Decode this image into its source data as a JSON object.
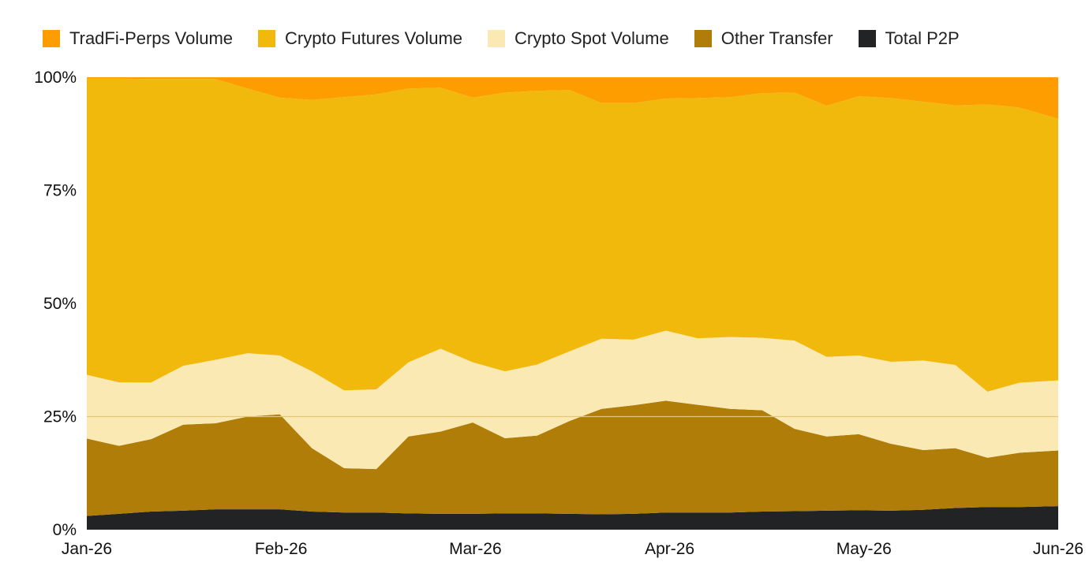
{
  "chart_data": {
    "type": "area",
    "stacked": true,
    "normalized": true,
    "title": "",
    "xlabel": "",
    "ylabel": "",
    "ylim": [
      0,
      100
    ],
    "y_ticks": [
      "0%",
      "25%",
      "50%",
      "75%",
      "100%"
    ],
    "x_ticks": [
      "Jan-26",
      "Feb-26",
      "Mar-26",
      "Apr-26",
      "May-26",
      "Jun-26"
    ],
    "x_dates": [
      "2026-01-01",
      "2026-01-06",
      "2026-01-11",
      "2026-01-16",
      "2026-01-21",
      "2026-01-26",
      "2026-01-31",
      "2026-02-05",
      "2026-02-10",
      "2026-02-15",
      "2026-02-20",
      "2026-02-25",
      "2026-03-02",
      "2026-03-07",
      "2026-03-12",
      "2026-03-17",
      "2026-03-22",
      "2026-03-27",
      "2026-04-01",
      "2026-04-06",
      "2026-04-11",
      "2026-04-16",
      "2026-04-21",
      "2026-04-26",
      "2026-05-01",
      "2026-05-06",
      "2026-05-11",
      "2026-05-16",
      "2026-05-21",
      "2026-05-26",
      "2026-06-01"
    ],
    "legend_position": "top",
    "grid": false,
    "reference_line": 25,
    "series": [
      {
        "name": "Total P2P",
        "color": "#222325",
        "values": [
          3,
          3.5,
          4,
          4.2,
          4.5,
          4.5,
          4.5,
          4,
          3.8,
          3.8,
          3.6,
          3.5,
          3.5,
          3.6,
          3.6,
          3.5,
          3.4,
          3.5,
          3.8,
          3.8,
          3.8,
          4.0,
          4.1,
          4.2,
          4.3,
          4.2,
          4.4,
          4.8,
          5.0,
          5.0,
          5.2
        ]
      },
      {
        "name": "Other Transfer",
        "color": "#b07e08",
        "values": [
          17,
          15,
          16,
          19,
          19,
          20.5,
          21,
          14,
          9.8,
          9.6,
          17,
          18.2,
          20.2,
          16.6,
          17.2,
          20.5,
          23.3,
          24,
          24.7,
          23.8,
          22.9,
          22.4,
          18.2,
          16.4,
          16.8,
          14.8,
          13.2,
          13.2,
          10.9,
          12,
          12.3
        ]
      },
      {
        "name": "Crypto Spot Volume",
        "color": "#fbe9b4",
        "values": [
          14,
          14,
          12.5,
          13,
          14,
          14,
          13,
          17,
          17.2,
          17.6,
          16.4,
          18.3,
          13.3,
          14.8,
          15.7,
          15.4,
          15.5,
          14.5,
          15.5,
          14.7,
          15.9,
          16,
          19.5,
          17.6,
          17.4,
          18.1,
          19.8,
          18.4,
          14.6,
          15.5,
          15.5
        ]
      },
      {
        "name": "Crypto Futures Volume",
        "color": "#f0b90b",
        "values": [
          65,
          67,
          67,
          63.3,
          62,
          58.5,
          57,
          60,
          64.8,
          65.2,
          60.5,
          57.7,
          58.5,
          61.6,
          60.5,
          57.8,
          52.1,
          52.3,
          51.3,
          53.1,
          53,
          54.1,
          54.8,
          55.5,
          57.3,
          58.3,
          57.2,
          57.4,
          63.5,
          60.8,
          57.8
        ]
      },
      {
        "name": "TradFi-Perps Volume",
        "color": "#fd9d00",
        "values": [
          0.3,
          0.3,
          0.4,
          0.4,
          0.4,
          2.5,
          4.5,
          5,
          4.4,
          3.8,
          2.5,
          2.3,
          4.5,
          3.4,
          3,
          2.8,
          5.7,
          5.7,
          4.7,
          4.6,
          4.4,
          3.5,
          3.4,
          6.3,
          4.2,
          4.6,
          5.4,
          6.2,
          6,
          6.7,
          9.2
        ]
      }
    ]
  },
  "legend": {
    "items": [
      {
        "label": "TradFi-Perps Volume",
        "color": "#fd9d00"
      },
      {
        "label": "Crypto Futures Volume",
        "color": "#f0b90b"
      },
      {
        "label": "Crypto Spot Volume",
        "color": "#fbe9b4"
      },
      {
        "label": "Other Transfer",
        "color": "#b07e08"
      },
      {
        "label": "Total P2P",
        "color": "#222325"
      }
    ]
  }
}
